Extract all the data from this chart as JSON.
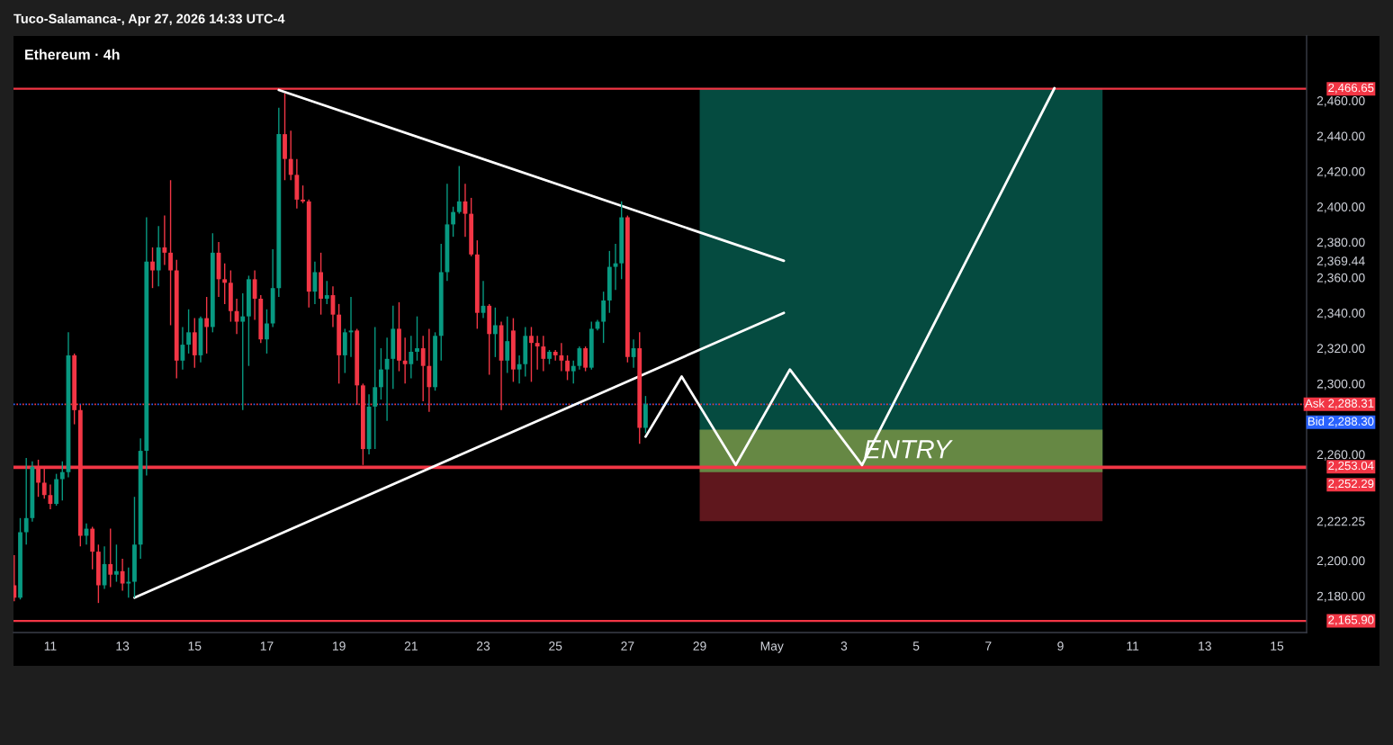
{
  "chart_data": {
    "type": "candlestick",
    "title": "Ethereum · 4h",
    "annotations": [
      "Tuco-Salamanca-, Apr 27, 2026 14:33 UTC-4",
      {
        "text": "ENTRY",
        "x": "2026-05-03T12:00",
        "y": 2254
      }
    ],
    "x": [
      "2026-04-10T00:00",
      "2026-04-10T04:00",
      "2026-04-10T08:00",
      "2026-04-10T12:00",
      "2026-04-10T16:00",
      "2026-04-10T20:00",
      "2026-04-11T00:00",
      "2026-04-11T04:00",
      "2026-04-11T08:00",
      "2026-04-11T12:00",
      "2026-04-11T16:00",
      "2026-04-11T20:00",
      "2026-04-12T00:00",
      "2026-04-12T04:00",
      "2026-04-12T08:00",
      "2026-04-12T12:00",
      "2026-04-12T16:00",
      "2026-04-12T20:00",
      "2026-04-13T00:00",
      "2026-04-13T04:00",
      "2026-04-13T08:00",
      "2026-04-13T12:00",
      "2026-04-13T16:00",
      "2026-04-13T20:00",
      "2026-04-14T00:00",
      "2026-04-14T04:00",
      "2026-04-14T08:00",
      "2026-04-14T12:00",
      "2026-04-14T16:00",
      "2026-04-14T20:00",
      "2026-04-15T00:00",
      "2026-04-15T04:00",
      "2026-04-15T08:00",
      "2026-04-15T12:00",
      "2026-04-15T16:00",
      "2026-04-15T20:00",
      "2026-04-16T00:00",
      "2026-04-16T04:00",
      "2026-04-16T08:00",
      "2026-04-16T12:00",
      "2026-04-16T16:00",
      "2026-04-16T20:00",
      "2026-04-17T00:00",
      "2026-04-17T04:00",
      "2026-04-17T08:00",
      "2026-04-17T12:00",
      "2026-04-17T16:00",
      "2026-04-17T20:00",
      "2026-04-18T00:00",
      "2026-04-18T04:00",
      "2026-04-18T08:00",
      "2026-04-18T12:00",
      "2026-04-18T16:00",
      "2026-04-18T20:00",
      "2026-04-19T00:00",
      "2026-04-19T04:00",
      "2026-04-19T08:00",
      "2026-04-19T12:00",
      "2026-04-19T16:00",
      "2026-04-19T20:00",
      "2026-04-20T00:00",
      "2026-04-20T04:00",
      "2026-04-20T08:00",
      "2026-04-20T12:00",
      "2026-04-20T16:00",
      "2026-04-20T20:00",
      "2026-04-21T00:00",
      "2026-04-21T04:00",
      "2026-04-21T08:00",
      "2026-04-21T12:00",
      "2026-04-21T16:00",
      "2026-04-21T20:00",
      "2026-04-22T00:00",
      "2026-04-22T04:00",
      "2026-04-22T08:00",
      "2026-04-22T12:00",
      "2026-04-22T16:00",
      "2026-04-22T20:00",
      "2026-04-23T00:00",
      "2026-04-23T04:00",
      "2026-04-23T08:00",
      "2026-04-23T12:00",
      "2026-04-23T16:00",
      "2026-04-23T20:00",
      "2026-04-24T00:00",
      "2026-04-24T04:00",
      "2026-04-24T08:00",
      "2026-04-24T12:00",
      "2026-04-24T16:00",
      "2026-04-24T20:00",
      "2026-04-25T00:00",
      "2026-04-25T04:00",
      "2026-04-25T08:00",
      "2026-04-25T12:00",
      "2026-04-25T16:00",
      "2026-04-25T20:00",
      "2026-04-26T00:00",
      "2026-04-26T04:00",
      "2026-04-26T08:00",
      "2026-04-26T12:00",
      "2026-04-26T16:00",
      "2026-04-26T20:00",
      "2026-04-27T00:00",
      "2026-04-27T04:00",
      "2026-04-27T08:00",
      "2026-04-27T12:00"
    ],
    "ohlc": [
      [
        2186,
        2203,
        2177,
        2179
      ],
      [
        2179,
        2224,
        2178,
        2216
      ],
      [
        2216,
        2258,
        2209,
        2224
      ],
      [
        2224,
        2256,
        2222,
        2253
      ],
      [
        2253,
        2257,
        2236,
        2244
      ],
      [
        2244,
        2252,
        2235,
        2237
      ],
      [
        2237,
        2243,
        2229,
        2232
      ],
      [
        2232,
        2249,
        2231,
        2246
      ],
      [
        2246,
        2256,
        2234,
        2250
      ],
      [
        2250,
        2329,
        2247,
        2316
      ],
      [
        2316,
        2317,
        2277,
        2285
      ],
      [
        2285,
        2288,
        2208,
        2214
      ],
      [
        2214,
        2221,
        2209,
        2218
      ],
      [
        2218,
        2219,
        2195,
        2205
      ],
      [
        2205,
        2209,
        2176,
        2186
      ],
      [
        2186,
        2208,
        2184,
        2198
      ],
      [
        2198,
        2218,
        2185,
        2192
      ],
      [
        2192,
        2209,
        2188,
        2194
      ],
      [
        2194,
        2201,
        2183,
        2187
      ],
      [
        2187,
        2196,
        2179,
        2188
      ],
      [
        2188,
        2236,
        2179,
        2209
      ],
      [
        2209,
        2269,
        2201,
        2262
      ],
      [
        2262,
        2394,
        2248,
        2369
      ],
      [
        2369,
        2377,
        2354,
        2364
      ],
      [
        2364,
        2389,
        2355,
        2377
      ],
      [
        2377,
        2395,
        2367,
        2374
      ],
      [
        2374,
        2415,
        2333,
        2364
      ],
      [
        2364,
        2370,
        2303,
        2313
      ],
      [
        2313,
        2332,
        2308,
        2322
      ],
      [
        2322,
        2342,
        2317,
        2329
      ],
      [
        2329,
        2337,
        2309,
        2316
      ],
      [
        2316,
        2338,
        2312,
        2337
      ],
      [
        2337,
        2349,
        2317,
        2332
      ],
      [
        2332,
        2385,
        2329,
        2374
      ],
      [
        2374,
        2380,
        2349,
        2359
      ],
      [
        2359,
        2368,
        2345,
        2357
      ],
      [
        2357,
        2364,
        2335,
        2341
      ],
      [
        2341,
        2348,
        2328,
        2335
      ],
      [
        2335,
        2351,
        2285,
        2338
      ],
      [
        2338,
        2361,
        2310,
        2359
      ],
      [
        2359,
        2364,
        2336,
        2348
      ],
      [
        2348,
        2350,
        2323,
        2325
      ],
      [
        2325,
        2342,
        2317,
        2334
      ],
      [
        2334,
        2376,
        2332,
        2354
      ],
      [
        2354,
        2456,
        2349,
        2441
      ],
      [
        2441,
        2464,
        2415,
        2427
      ],
      [
        2427,
        2443,
        2415,
        2418
      ],
      [
        2418,
        2427,
        2399,
        2404
      ],
      [
        2404,
        2412,
        2402,
        2403
      ],
      [
        2403,
        2404,
        2343,
        2352
      ],
      [
        2352,
        2369,
        2345,
        2363
      ],
      [
        2363,
        2374,
        2339,
        2348
      ],
      [
        2348,
        2358,
        2345,
        2350
      ],
      [
        2350,
        2355,
        2332,
        2339
      ],
      [
        2339,
        2345,
        2300,
        2316
      ],
      [
        2316,
        2331,
        2306,
        2329
      ],
      [
        2329,
        2349,
        2315,
        2330
      ],
      [
        2330,
        2331,
        2288,
        2299
      ],
      [
        2299,
        2300,
        2254,
        2263
      ],
      [
        2263,
        2294,
        2260,
        2287
      ],
      [
        2287,
        2332,
        2263,
        2298
      ],
      [
        2298,
        2320,
        2291,
        2308
      ],
      [
        2308,
        2326,
        2279,
        2314
      ],
      [
        2314,
        2344,
        2297,
        2331
      ],
      [
        2331,
        2346,
        2307,
        2313
      ],
      [
        2313,
        2326,
        2300,
        2311
      ],
      [
        2311,
        2327,
        2303,
        2318
      ],
      [
        2318,
        2338,
        2313,
        2320
      ],
      [
        2320,
        2327,
        2290,
        2310
      ],
      [
        2310,
        2331,
        2284,
        2298
      ],
      [
        2298,
        2329,
        2296,
        2327
      ],
      [
        2327,
        2379,
        2313,
        2363
      ],
      [
        2363,
        2413,
        2358,
        2390
      ],
      [
        2390,
        2400,
        2383,
        2397
      ],
      [
        2397,
        2423,
        2396,
        2403
      ],
      [
        2403,
        2413,
        2383,
        2396
      ],
      [
        2396,
        2405,
        2372,
        2373
      ],
      [
        2373,
        2381,
        2331,
        2340
      ],
      [
        2340,
        2358,
        2337,
        2344
      ],
      [
        2344,
        2345,
        2305,
        2328
      ],
      [
        2328,
        2343,
        2315,
        2333
      ],
      [
        2333,
        2335,
        2285,
        2313
      ],
      [
        2313,
        2338,
        2306,
        2324
      ],
      [
        2330,
        2337,
        2301,
        2308
      ],
      [
        2308,
        2316,
        2300,
        2311
      ],
      [
        2311,
        2332,
        2304,
        2327
      ],
      [
        2327,
        2332,
        2301,
        2323
      ],
      [
        2323,
        2327,
        2308,
        2321
      ],
      [
        2321,
        2327,
        2307,
        2314
      ],
      [
        2314,
        2319,
        2311,
        2318
      ],
      [
        2318,
        2319,
        2313,
        2316
      ],
      [
        2316,
        2323,
        2307,
        2313
      ],
      [
        2313,
        2316,
        2302,
        2307
      ],
      [
        2307,
        2313,
        2300,
        2310
      ],
      [
        2310,
        2321,
        2308,
        2320
      ],
      [
        2320,
        2321,
        2307,
        2309
      ],
      [
        2309,
        2335,
        2308,
        2331
      ],
      [
        2331,
        2336,
        2330,
        2335
      ],
      [
        2335,
        2352,
        2323,
        2347
      ],
      [
        2347,
        2375,
        2340,
        2366
      ],
      [
        2366,
        2379,
        2353,
        2368
      ],
      [
        2368,
        2403,
        2359,
        2394
      ],
      [
        2394,
        2395,
        2312,
        2315
      ],
      [
        2315,
        2325,
        2309,
        2320
      ],
      [
        2320,
        2329,
        2266,
        2275
      ],
      [
        2275,
        2293,
        2272,
        2288.3
      ]
    ],
    "colors": [
      "#f23645",
      "#089981",
      "#089981",
      "#089981",
      "#f23645",
      "#f23645",
      "#f23645",
      "#089981",
      "#089981",
      "#089981",
      "#f23645",
      "#f23645",
      "#089981",
      "#f23645",
      "#f23645",
      "#089981",
      "#f23645",
      "#089981",
      "#f23645",
      "#089981",
      "#089981",
      "#089981",
      "#089981",
      "#f23645",
      "#089981",
      "#f23645",
      "#f23645",
      "#f23645",
      "#089981",
      "#089981",
      "#f23645",
      "#089981",
      "#f23645",
      "#089981",
      "#f23645",
      "#f23645",
      "#f23645",
      "#f23645",
      "#089981",
      "#089981",
      "#f23645",
      "#f23645",
      "#089981",
      "#089981",
      "#089981",
      "#f23645",
      "#f23645",
      "#f23645",
      "#f23645",
      "#f23645",
      "#089981",
      "#f23645",
      "#089981",
      "#f23645",
      "#f23645",
      "#089981",
      "#089981",
      "#f23645",
      "#f23645",
      "#089981",
      "#089981",
      "#089981",
      "#089981",
      "#089981",
      "#f23645",
      "#f23645",
      "#089981",
      "#089981",
      "#f23645",
      "#f23645",
      "#089981",
      "#089981",
      "#089981",
      "#089981",
      "#089981",
      "#f23645",
      "#f23645",
      "#f23645",
      "#089981",
      "#f23645",
      "#089981",
      "#f23645",
      "#089981",
      "#f23645",
      "#089981",
      "#089981",
      "#f23645",
      "#f23645",
      "#f23645",
      "#089981",
      "#f23645",
      "#f23645",
      "#f23645",
      "#089981",
      "#089981",
      "#f23645",
      "#089981",
      "#089981",
      "#089981",
      "#089981",
      "#089981",
      "#089981",
      "#f23645",
      "#089981",
      "#f23645",
      "#089981"
    ],
    "series": [
      {
        "type": "line",
        "x": [
          "2026-04-29T00:00",
          "2026-05-10T04:00"
        ],
        "values": [
          null,
          null
        ],
        "lower": [
          2252.29,
          2252.29
        ],
        "upper": [
          2466.65,
          2466.65
        ],
        "color": "#054b40"
      },
      {
        "type": "line",
        "x": [
          "2026-04-29T00:00",
          "2026-05-10T04:00"
        ],
        "values": [
          null,
          null
        ],
        "lower": [
          2222.25,
          2222.25
        ],
        "upper": [
          2252.29,
          2252.29
        ],
        "color": "#5f171d"
      },
      {
        "type": "line",
        "x": [
          "2026-04-29T00:00",
          "2026-05-10T04:00"
        ],
        "values": [
          null,
          null
        ],
        "lower": [
          2250,
          2250
        ],
        "upper": [
          2274,
          2274
        ],
        "color": "#668844"
      },
      {
        "type": "line",
        "x": [
          "2026-04-17T08:00",
          "2026-05-01T08:00"
        ],
        "values": [
          2466,
          2369.44
        ],
        "color": "#ffffff"
      },
      {
        "type": "line",
        "x": [
          "2026-04-13T08:00",
          "2026-05-01T08:00"
        ],
        "values": [
          2179,
          2340
        ],
        "color": "#ffffff"
      },
      {
        "type": "line",
        "x": [
          "2026-04-27T12:00",
          "2026-04-28T12:00",
          "2026-04-30T00:00",
          "2026-05-01T12:00",
          "2026-05-03T12:00",
          "2026-05-08T20:00"
        ],
        "values": [
          2270,
          2304,
          2254,
          2308,
          2254,
          2467
        ],
        "color": "#ffffff"
      }
    ],
    "ref_lines": [
      {
        "axis": "y",
        "value": 2466.65,
        "label": "2,466.65",
        "color": "#f23645",
        "line_style": "solid"
      },
      {
        "axis": "y",
        "value": 2288.31,
        "label": "Ask 2,288.31",
        "color": "#f23645",
        "line_style": "dotted"
      },
      {
        "axis": "y",
        "value": 2288.3,
        "label": "Bid 2,288.30",
        "color": "#2962ff",
        "line_style": "dotted"
      },
      {
        "axis": "y",
        "value": 2253.04,
        "label": "2,253.04",
        "color": "#f23645",
        "line_style": "solid"
      },
      {
        "axis": "y",
        "value": 2252.29,
        "label": "2,252.29",
        "color": "#f23645",
        "line_style": "solid"
      },
      {
        "axis": "y",
        "value": 2165.9,
        "label": "2,165.90",
        "color": "#f23645",
        "line_style": "solid"
      }
    ],
    "xlim": [
      "2026-04-09T23:30",
      "2026-05-15T19:45"
    ],
    "xticks": [
      {
        "value": "2026-04-11",
        "label": "11"
      },
      {
        "value": "2026-04-13",
        "label": "13"
      },
      {
        "value": "2026-04-15",
        "label": "15"
      },
      {
        "value": "2026-04-17",
        "label": "17"
      },
      {
        "value": "2026-04-19",
        "label": "19"
      },
      {
        "value": "2026-04-21",
        "label": "21"
      },
      {
        "value": "2026-04-23",
        "label": "23"
      },
      {
        "value": "2026-04-25",
        "label": "25"
      },
      {
        "value": "2026-04-27",
        "label": "27"
      },
      {
        "value": "2026-04-29",
        "label": "29"
      },
      {
        "value": "2026-05-01",
        "label": "May"
      },
      {
        "value": "2026-05-03",
        "label": "3"
      },
      {
        "value": "2026-05-05",
        "label": "5"
      },
      {
        "value": "2026-05-07",
        "label": "7"
      },
      {
        "value": "2026-05-09",
        "label": "9"
      },
      {
        "value": "2026-05-11",
        "label": "11"
      },
      {
        "value": "2026-05-13",
        "label": "13"
      },
      {
        "value": "2026-05-15",
        "label": "15"
      }
    ],
    "ylim": [
      2159.3,
      2496.5
    ],
    "yticks": [
      {
        "value": 2180,
        "label": "2,180.00"
      },
      {
        "value": 2200,
        "label": "2,200.00"
      },
      {
        "value": 2222.25,
        "label": "2,222.25"
      },
      {
        "value": 2260,
        "label": "2,260.00"
      },
      {
        "value": 2300,
        "label": "2,300.00"
      },
      {
        "value": 2320,
        "label": "2,320.00"
      },
      {
        "value": 2340,
        "label": "2,340.00"
      },
      {
        "value": 2360,
        "label": "2,360.00"
      },
      {
        "value": 2369.44,
        "label": "2,369.44"
      },
      {
        "value": 2380,
        "label": "2,380.00"
      },
      {
        "value": 2400,
        "label": "2,400.00"
      },
      {
        "value": 2420,
        "label": "2,420.00"
      },
      {
        "value": 2440,
        "label": "2,440.00"
      },
      {
        "value": 2460,
        "label": "2,460.00"
      }
    ]
  }
}
